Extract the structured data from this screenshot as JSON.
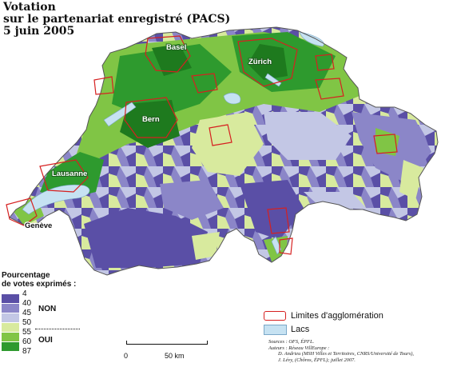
{
  "title": {
    "line1": "Votation",
    "line2": "sur le partenariat enregistré (PACS)",
    "line3": "5 juin 2005"
  },
  "cities": [
    "Basel",
    "Zürich",
    "Bern",
    "Lausanne",
    "Genève"
  ],
  "legend": {
    "title_line1": "Pourcentage",
    "title_line2": "de votes exprimés :",
    "classes": [
      {
        "value": "4",
        "color": "#5a4fa6"
      },
      {
        "value": "40",
        "color": "#8b86c8"
      },
      {
        "value": "45",
        "color": "#c3c7e5"
      },
      {
        "value": "50",
        "color": "#d8ea9e"
      },
      {
        "value": "55",
        "color": "#80c545"
      },
      {
        "value": "60",
        "color": "#2e9a2e"
      },
      {
        "value": "87",
        "color": ""
      }
    ],
    "non_label": "NON",
    "oui_label": "OUI",
    "agglomeration_label": "Limites d'agglomération",
    "lakes_label": "Lacs",
    "agglomeration_color": "#d62020",
    "lakes_color": "#c6e2f2"
  },
  "scale": {
    "zero": "0",
    "fifty": "50 km"
  },
  "credits": {
    "line1": "Sources : OFS, ÉPFL.",
    "line2": "Auteurs : Réseau VillEurope :",
    "line3": "D. Andrieu (MSH Villes et Territoires, CNRS/Université de Tours),",
    "line4": "J. Lévy, (Chôros, ÉPFL); juillet 2007."
  }
}
